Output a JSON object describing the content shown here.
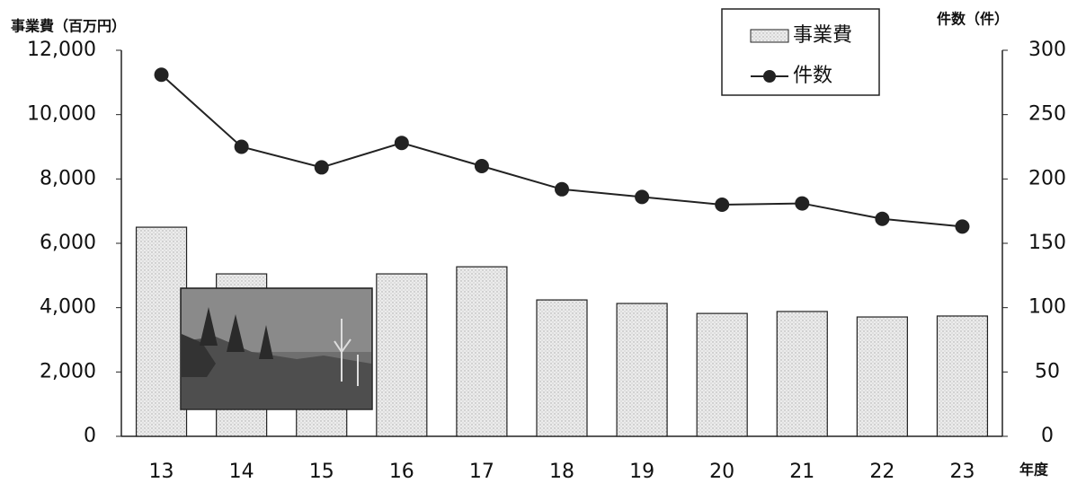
{
  "chart_data": {
    "type": "bar-line",
    "y_label": "事業費（百万円）",
    "y2_label": "件数（件）",
    "x_label": "年度",
    "categories": [
      "13",
      "14",
      "15",
      "16",
      "17",
      "18",
      "19",
      "20",
      "21",
      "22",
      "23"
    ],
    "series": [
      {
        "name": "事業費",
        "type": "bar",
        "color": "#e6e6e6",
        "values": [
          6500,
          5050,
          4500,
          5050,
          5270,
          4240,
          4130,
          3820,
          3880,
          3710,
          3740
        ]
      },
      {
        "name": "件数",
        "type": "line",
        "axis": "y2",
        "color": "#222222",
        "values": [
          281,
          225,
          209,
          228,
          210,
          192,
          186,
          180,
          181,
          169,
          163
        ]
      }
    ],
    "ylim": [
      0,
      12000
    ],
    "yticks": [
      0,
      {
        "value": 2000,
        "label": "2,000"
      },
      {
        "value": 4000,
        "label": "4,000"
      },
      {
        "value": 6000,
        "label": "6,000"
      },
      {
        "value": 8000,
        "label": "8,000"
      },
      {
        "value": 10000,
        "label": "10,000"
      },
      {
        "value": 12000,
        "label": "12,000"
      }
    ],
    "y2lim": [
      0,
      300
    ],
    "y2ticks": [
      0,
      50,
      100,
      150,
      200,
      250,
      300
    ]
  }
}
